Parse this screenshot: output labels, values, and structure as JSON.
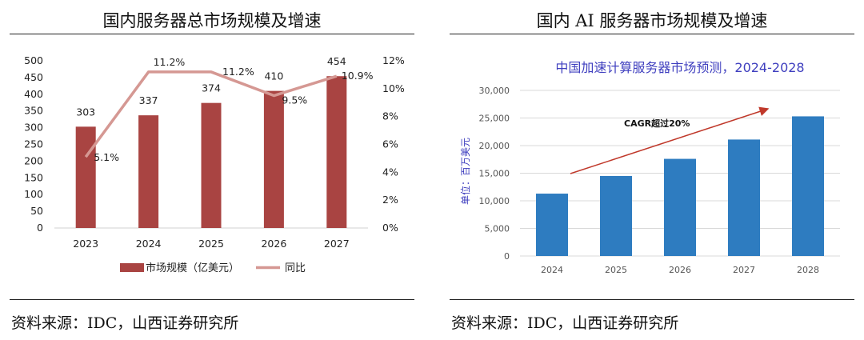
{
  "left": {
    "title": "国内服务器总市场规模及增速",
    "source": "资料来源：IDC，山西证券研究所"
  },
  "right": {
    "title": "国内 AI 服务器市场规模及增速",
    "source": "资料来源：IDC，山西证券研究所"
  },
  "colors": {
    "bar_left": "#a94442",
    "line_left": "#d59893",
    "bar_right": "#2e7cc0",
    "arrow": "#c0392b",
    "title_right": "#3f3fbf"
  },
  "chart_data": [
    {
      "type": "bar",
      "title": "",
      "categories": [
        "2023",
        "2024",
        "2025",
        "2026",
        "2027"
      ],
      "series": [
        {
          "name": "市场规模（亿美元）",
          "type": "bar",
          "axis": "left",
          "values": [
            303,
            337,
            374,
            410,
            454
          ]
        },
        {
          "name": "同比",
          "type": "line",
          "axis": "right",
          "values": [
            5.1,
            11.2,
            11.2,
            9.5,
            10.9
          ],
          "labels": [
            "5.1%",
            "11.2%",
            "11.2%",
            "9.5%",
            "10.9%"
          ]
        }
      ],
      "yticks": [
        "0",
        "50",
        "100",
        "150",
        "200",
        "250",
        "300",
        "350",
        "400",
        "450",
        "500"
      ],
      "y2ticks": [
        "0%",
        "2%",
        "4%",
        "6%",
        "8%",
        "10%",
        "12%"
      ],
      "ylim": [
        0,
        500
      ],
      "y2lim": [
        0,
        12
      ],
      "grid": false,
      "legend": "bottom"
    },
    {
      "type": "bar",
      "title": "中国加速计算服务器市场预测，2024-2028",
      "categories": [
        "2024",
        "2025",
        "2026",
        "2027",
        "2028"
      ],
      "values": [
        11300,
        14500,
        17600,
        21100,
        25300
      ],
      "ylabel": "单位：百万美元",
      "yticks": [
        "0",
        "5,000",
        "10,000",
        "15,000",
        "20,000",
        "25,000",
        "30,000"
      ],
      "ylim": [
        0,
        30000
      ],
      "grid": true,
      "annotation": "CAGR超过20%"
    }
  ]
}
